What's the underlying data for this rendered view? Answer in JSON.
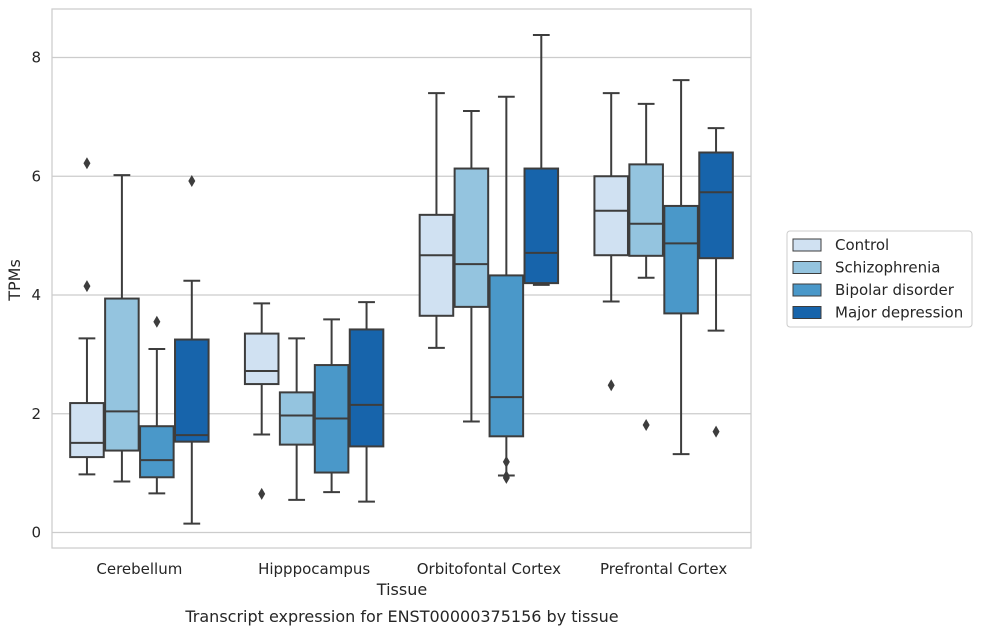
{
  "chart_data": {
    "type": "box",
    "title": "",
    "caption": "Transcript expression for ENST00000375156 by tissue",
    "xlabel": "Tissue",
    "ylabel": "TPMs",
    "ylim": [
      -0.25,
      8.8
    ],
    "yticks": [
      0,
      2,
      4,
      6,
      8
    ],
    "grid": "horizontal",
    "legend_position": "right",
    "categories": [
      "Cerebellum",
      "Hipppocampus",
      "Orbitofontal Cortex",
      "Prefrontal Cortex"
    ],
    "series": [
      {
        "name": "Control",
        "color": "#d0e1f2",
        "boxes": [
          {
            "whisker_low": 0.98,
            "q1": 1.27,
            "median": 1.51,
            "q3": 2.18,
            "whisker_high": 3.27,
            "outliers": [
              4.15,
              6.22
            ]
          },
          {
            "whisker_low": 1.65,
            "q1": 2.5,
            "median": 2.72,
            "q3": 3.35,
            "whisker_high": 3.86,
            "outliers": [
              0.65
            ]
          },
          {
            "whisker_low": 3.11,
            "q1": 3.65,
            "median": 4.67,
            "q3": 5.35,
            "whisker_high": 7.4,
            "outliers": []
          },
          {
            "whisker_low": 3.89,
            "q1": 4.67,
            "median": 5.42,
            "q3": 6.0,
            "whisker_high": 7.4,
            "outliers": [
              2.48
            ]
          }
        ]
      },
      {
        "name": "Schizophrenia",
        "color": "#94c4df",
        "boxes": [
          {
            "whisker_low": 0.86,
            "q1": 1.38,
            "median": 2.04,
            "q3": 3.94,
            "whisker_high": 6.02,
            "outliers": []
          },
          {
            "whisker_low": 0.55,
            "q1": 1.48,
            "median": 1.97,
            "q3": 2.36,
            "whisker_high": 3.27,
            "outliers": []
          },
          {
            "whisker_low": 1.87,
            "q1": 3.8,
            "median": 4.52,
            "q3": 6.13,
            "whisker_high": 7.1,
            "outliers": []
          },
          {
            "whisker_low": 4.29,
            "q1": 4.66,
            "median": 5.2,
            "q3": 6.2,
            "whisker_high": 7.22,
            "outliers": [
              1.81
            ]
          }
        ]
      },
      {
        "name": "Bipolar disorder",
        "color": "#4a98c9",
        "boxes": [
          {
            "whisker_low": 0.66,
            "q1": 0.93,
            "median": 1.22,
            "q3": 1.79,
            "whisker_high": 3.09,
            "outliers": [
              3.55
            ]
          },
          {
            "whisker_low": 0.68,
            "q1": 1.01,
            "median": 1.92,
            "q3": 2.82,
            "whisker_high": 3.59,
            "outliers": []
          },
          {
            "whisker_low": 0.96,
            "q1": 1.62,
            "median": 2.28,
            "q3": 4.33,
            "whisker_high": 7.34,
            "outliers": [
              0.92,
              0.95,
              1.19
            ]
          },
          {
            "whisker_low": 1.32,
            "q1": 3.69,
            "median": 4.87,
            "q3": 5.5,
            "whisker_high": 7.62,
            "outliers": []
          }
        ]
      },
      {
        "name": "Major depression",
        "color": "#1764ab",
        "boxes": [
          {
            "whisker_low": 0.15,
            "q1": 1.53,
            "median": 1.64,
            "q3": 3.25,
            "whisker_high": 4.24,
            "outliers": [
              5.92
            ]
          },
          {
            "whisker_low": 0.52,
            "q1": 1.45,
            "median": 2.15,
            "q3": 3.42,
            "whisker_high": 3.88,
            "outliers": []
          },
          {
            "whisker_low": 4.17,
            "q1": 4.2,
            "median": 4.71,
            "q3": 6.13,
            "whisker_high": 8.38,
            "outliers": []
          },
          {
            "whisker_low": 3.4,
            "q1": 4.62,
            "median": 5.73,
            "q3": 6.4,
            "whisker_high": 6.81,
            "outliers": [
              1.7
            ]
          }
        ]
      }
    ]
  }
}
